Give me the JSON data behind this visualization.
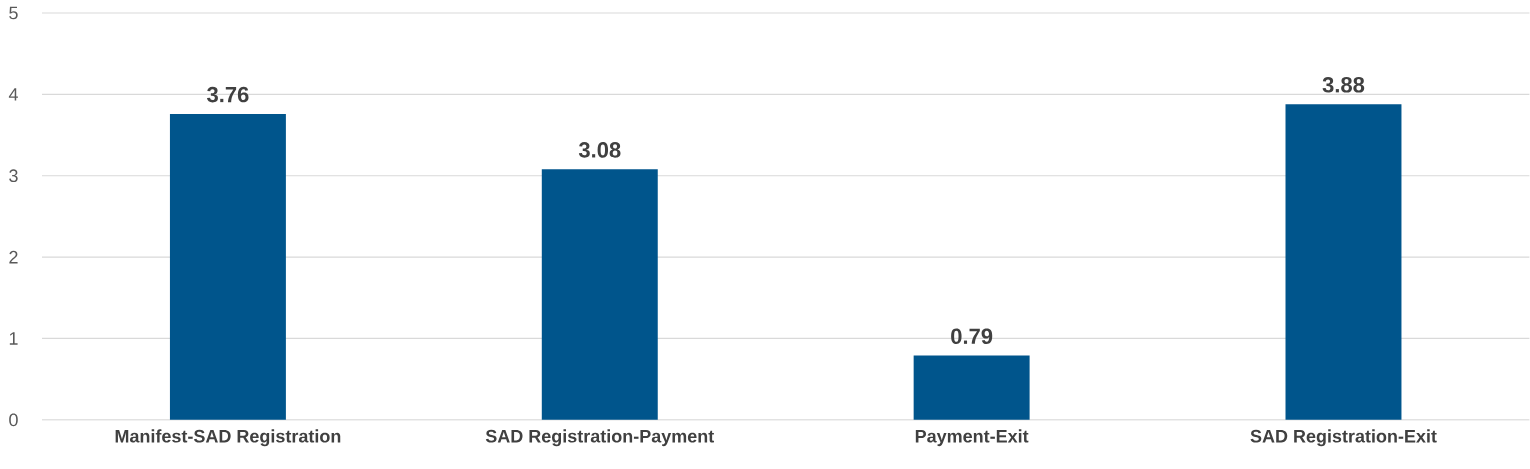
{
  "chart_data": {
    "type": "bar",
    "categories": [
      "Manifest-SAD Registration",
      "SAD Registration-Payment",
      "Payment-Exit",
      "SAD Registration-Exit"
    ],
    "values": [
      3.76,
      3.08,
      0.79,
      3.88
    ],
    "color": "#00558c",
    "ylim": [
      0,
      5
    ],
    "yticks": [
      0,
      1,
      2,
      3,
      4,
      5
    ],
    "grid": "y",
    "data_labels": true
  }
}
